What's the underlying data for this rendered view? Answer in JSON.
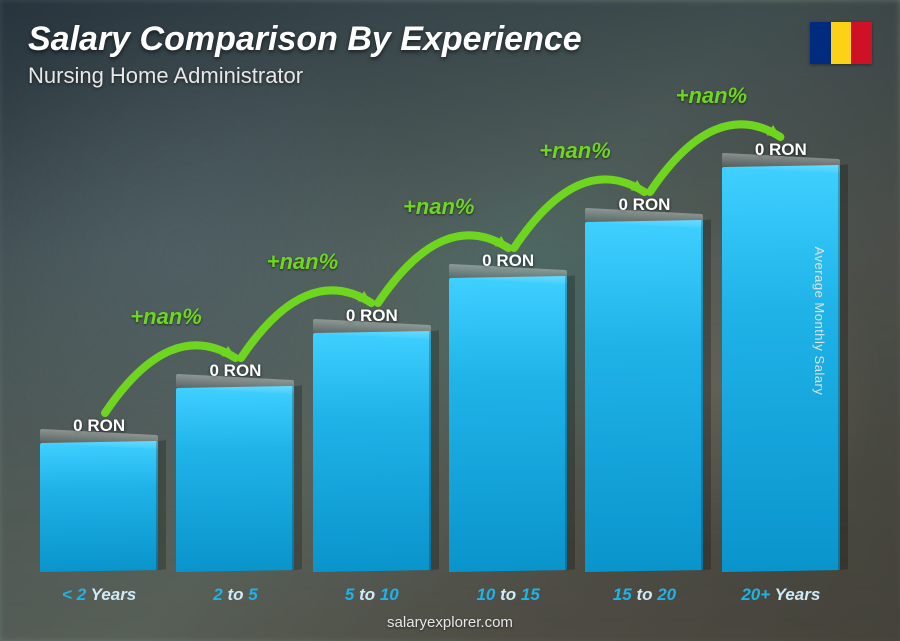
{
  "header": {
    "title": "Salary Comparison By Experience",
    "subtitle": "Nursing Home Administrator"
  },
  "flag": {
    "stripes": [
      "#002b7f",
      "#fcd116",
      "#ce1126"
    ]
  },
  "yaxis_label": "Average Monthly Salary",
  "footer": "salaryexplorer.com",
  "chart": {
    "type": "bar",
    "bar_color": "#1fb3e8",
    "bar_gradient_top": "#3fd0ff",
    "bar_gradient_bottom": "#0a94cc",
    "label_highlight_color": "#1fb3e8",
    "label_dim_color": "#cfeaf8",
    "value_color": "#ffffff",
    "arrow_color": "#6fd61f",
    "background_overlay": "rgba(40,50,55,0.6)",
    "bars": [
      {
        "label_pre": "< 2",
        "label_post": " Years",
        "value_label": "0 RON",
        "height_pct": 28
      },
      {
        "label_pre": "2",
        "label_mid": " to ",
        "label_post": "5",
        "value_label": "0 RON",
        "height_pct": 40
      },
      {
        "label_pre": "5",
        "label_mid": " to ",
        "label_post": "10",
        "value_label": "0 RON",
        "height_pct": 52
      },
      {
        "label_pre": "10",
        "label_mid": " to ",
        "label_post": "15",
        "value_label": "0 RON",
        "height_pct": 64
      },
      {
        "label_pre": "15",
        "label_mid": " to ",
        "label_post": "20",
        "value_label": "0 RON",
        "height_pct": 76
      },
      {
        "label_pre": "20+",
        "label_post": " Years",
        "value_label": "0 RON",
        "height_pct": 88
      }
    ],
    "arrows": [
      {
        "text": "+nan%"
      },
      {
        "text": "+nan%"
      },
      {
        "text": "+nan%"
      },
      {
        "text": "+nan%"
      },
      {
        "text": "+nan%"
      }
    ]
  }
}
